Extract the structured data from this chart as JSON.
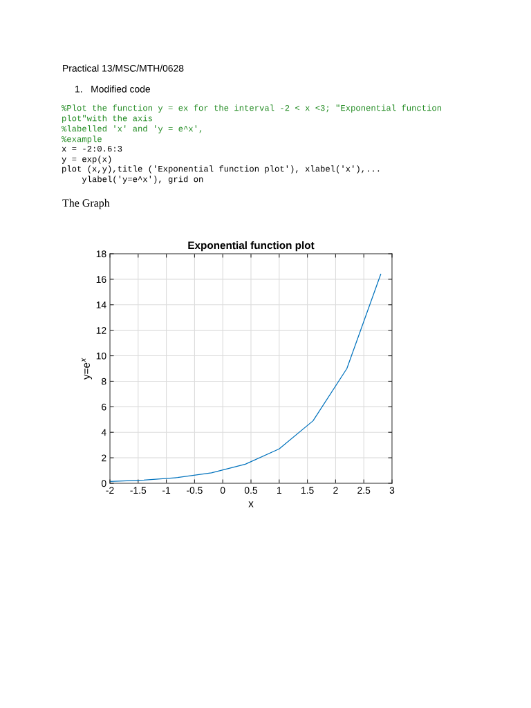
{
  "chart_data": {
    "type": "line",
    "title": "Exponential function plot",
    "xlabel": "x",
    "ylabel": "y=e$^{x}$",
    "x": [
      -2,
      -1.4,
      -0.8,
      -0.2,
      0.4,
      1.0,
      1.6,
      2.2,
      2.8
    ],
    "series": [
      {
        "color": "#0072bd",
        "values": [
          0.14,
          0.25,
          0.45,
          0.82,
          1.5,
          2.7,
          4.9,
          9.0,
          16.4
        ]
      }
    ],
    "xlim": [
      -2,
      3
    ],
    "xticks": [
      -2,
      -1.5,
      -1,
      -0.5,
      0,
      0.5,
      1,
      1.5,
      2,
      2.5,
      3
    ],
    "ylim": [
      0,
      18
    ],
    "yticks": [
      0,
      2,
      4,
      6,
      8,
      10,
      12,
      14,
      16,
      18
    ],
    "grid": true,
    "marker": "none",
    "line_style": "solid",
    "annotations": [
      "Practical 13/MSC/MTH/0628",
      "1.   Modified code",
      "%Plot the function y = ex for the interval -2 < x <3; \"Exponential function",
      "plot\"with the axis",
      "%labelled 'x' and 'y = e^x',",
      "%example",
      "x = -2:0.6:3",
      "y = exp(x)",
      "plot (x,y),title ('Exponential function plot'), xlabel('x'),...",
      "    ylabel('y=e^x'), grid on",
      "The Graph"
    ]
  }
}
